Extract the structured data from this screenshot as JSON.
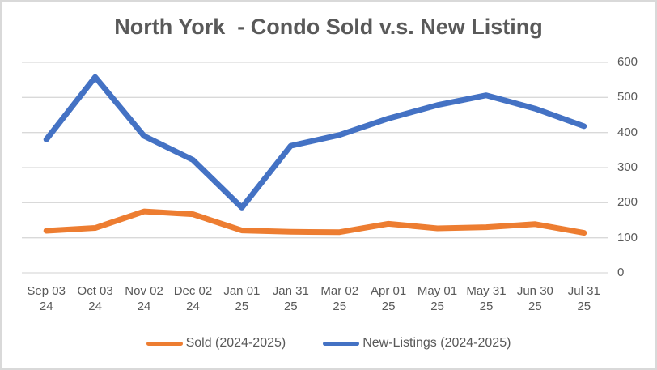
{
  "title": "North York  - Condo Sold v.s. New Listing",
  "colors": {
    "sold": "#ED7D31",
    "new_listings": "#4472C4",
    "grid": "#D9D9D9",
    "text": "#595959",
    "border": "#D9D9D9",
    "background": "#FFFFFF"
  },
  "chart_data": {
    "type": "line",
    "title": "North York  - Condo Sold v.s. New Listing",
    "categories": [
      "Sep 03 24",
      "Oct 03 24",
      "Nov 02 24",
      "Dec 02 24",
      "Jan 01 25",
      "Jan 31 25",
      "Mar 02 25",
      "Apr 01 25",
      "May 01 25",
      "May 31 25",
      "Jun 30 25",
      "Jul 31 25"
    ],
    "series": [
      {
        "name": "Sold (2024-2025)",
        "color_key": "sold",
        "values": [
          120,
          128,
          175,
          167,
          121,
          117,
          116,
          140,
          127,
          130,
          139,
          114
        ]
      },
      {
        "name": "New-Listings (2024-2025)",
        "color_key": "new_listings",
        "values": [
          380,
          558,
          390,
          322,
          186,
          362,
          393,
          440,
          478,
          506,
          468,
          418
        ]
      }
    ],
    "ylim": [
      0,
      600
    ],
    "yticks": [
      0,
      100,
      200,
      300,
      400,
      500,
      600
    ],
    "xlabel": "",
    "ylabel": "",
    "y_axis_side": "right",
    "grid": true,
    "legend_position": "bottom"
  }
}
